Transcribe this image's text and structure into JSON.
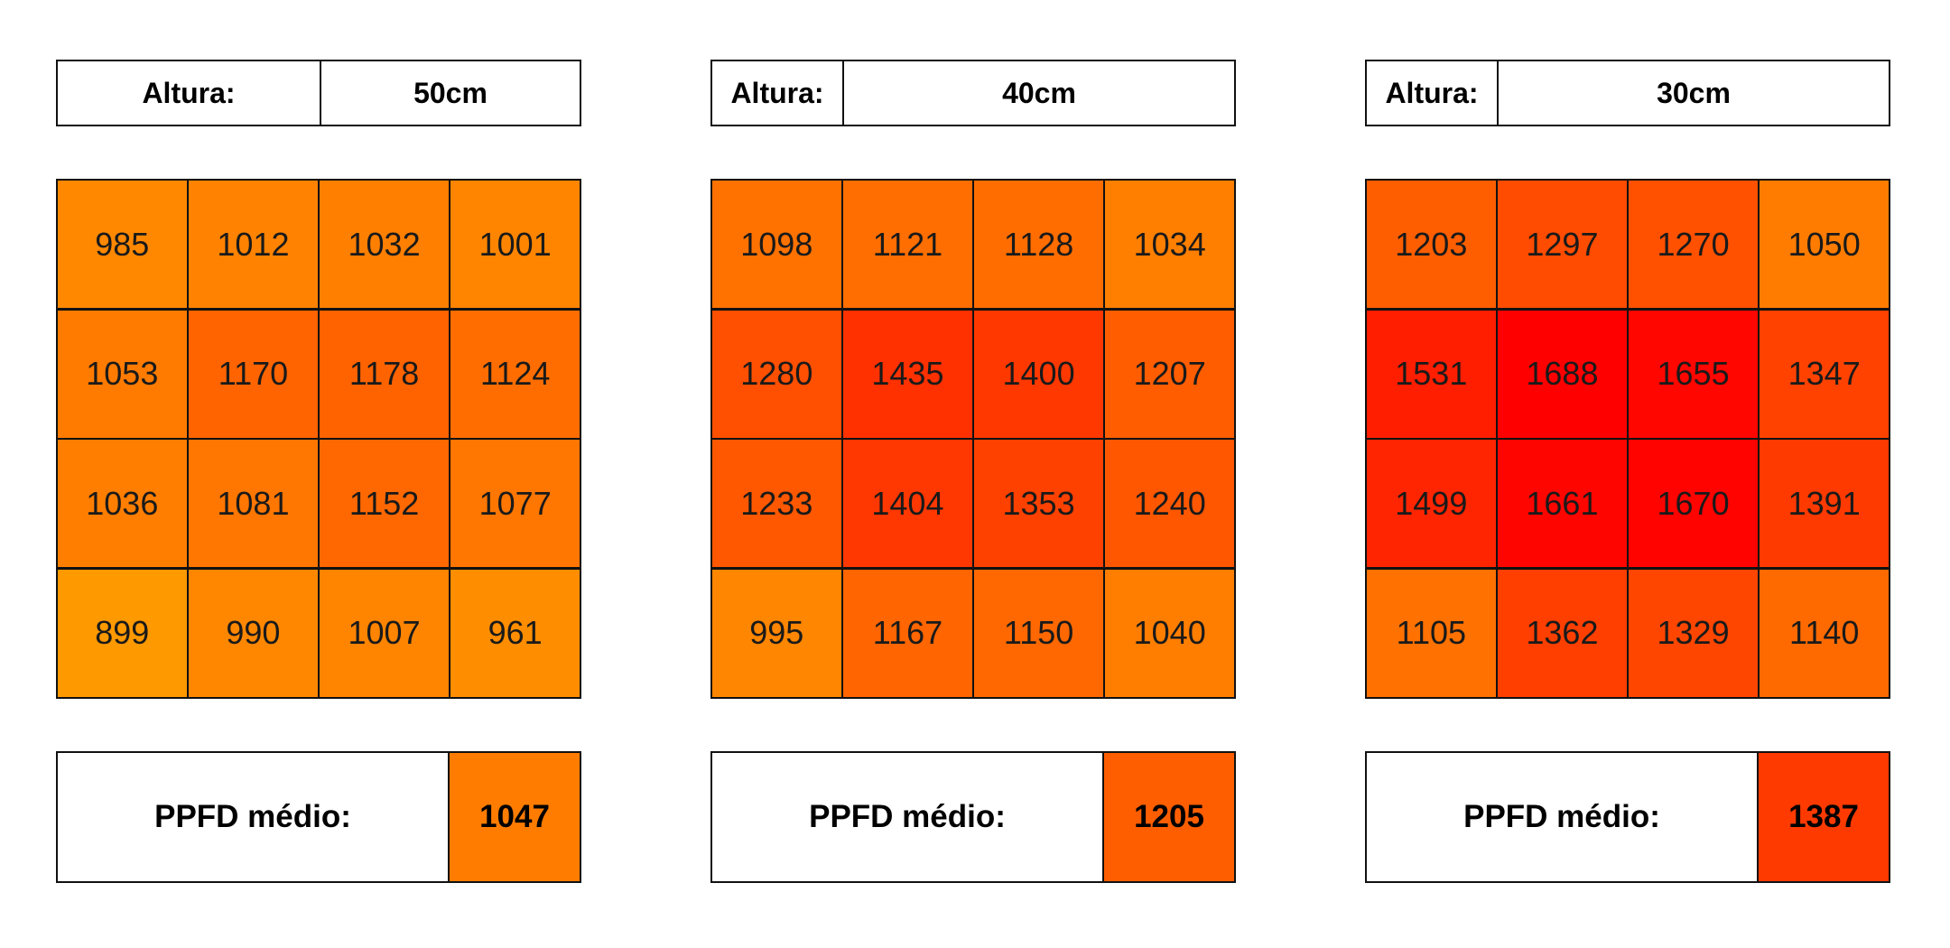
{
  "chart_data": {
    "type": "heatmap",
    "color_scale": {
      "low": 899,
      "high": 1688,
      "low_color": "#ff9900",
      "high_color": "#ff0000"
    },
    "panels": [
      {
        "height_label": "Altura:",
        "height_value": "50cm",
        "rows": [
          [
            985,
            1012,
            1032,
            1001
          ],
          [
            1053,
            1170,
            1178,
            1124
          ],
          [
            1036,
            1081,
            1152,
            1077
          ],
          [
            899,
            990,
            1007,
            961
          ]
        ],
        "average_label": "PPFD médio:",
        "average_value": 1047
      },
      {
        "height_label": "Altura:",
        "height_value": "40cm",
        "rows": [
          [
            1098,
            1121,
            1128,
            1034
          ],
          [
            1280,
            1435,
            1400,
            1207
          ],
          [
            1233,
            1404,
            1353,
            1240
          ],
          [
            995,
            1167,
            1150,
            1040
          ]
        ],
        "average_label": "PPFD médio:",
        "average_value": 1205
      },
      {
        "height_label": "Altura:",
        "height_value": "30cm",
        "rows": [
          [
            1203,
            1297,
            1270,
            1050
          ],
          [
            1531,
            1688,
            1655,
            1347
          ],
          [
            1499,
            1661,
            1670,
            1391
          ],
          [
            1105,
            1362,
            1329,
            1140
          ]
        ],
        "average_label": "PPFD médio:",
        "average_value": 1387
      }
    ]
  }
}
